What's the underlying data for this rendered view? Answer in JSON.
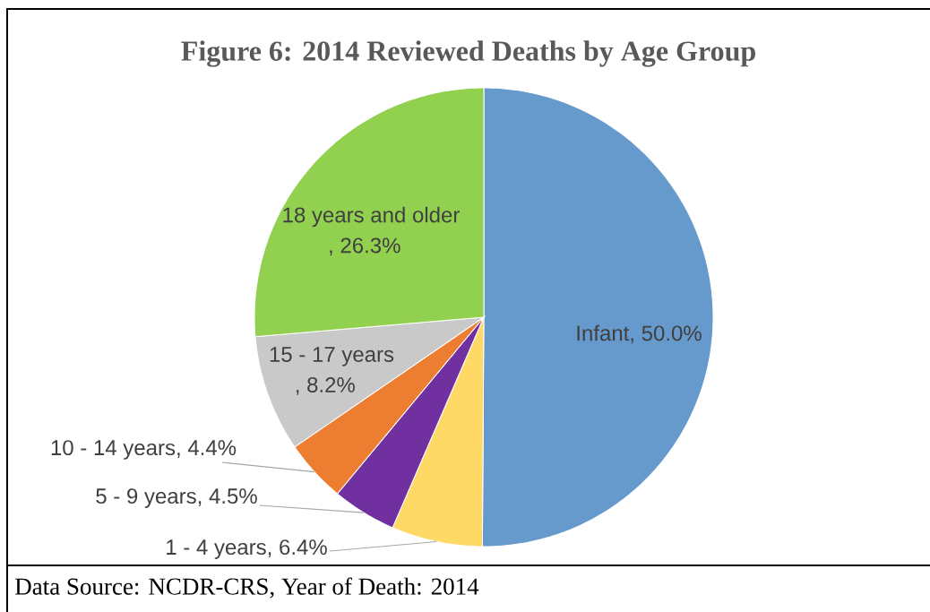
{
  "chart_data": {
    "type": "pie",
    "title": "Figure 6: 2014 Reviewed Deaths by Age Group",
    "categories": [
      "Infant",
      "1 - 4 years",
      "5 - 9 years",
      "10 - 14 years",
      "15 - 17 years",
      "18 years and older"
    ],
    "values": [
      50.0,
      6.4,
      4.5,
      4.4,
      8.2,
      26.3
    ],
    "colors": [
      "#6699cc",
      "#ffd966",
      "#7030a0",
      "#ed7d31",
      "#c9c9c9",
      "#92d050"
    ],
    "value_labels": [
      ", 50.0%",
      ", 6.4%",
      ", 4.5%",
      ", 4.4%",
      ", 8.2%",
      ", 26.3%"
    ],
    "annotations": [
      "Data Source:  NCDR-CRS, Year of Death:  2014"
    ]
  }
}
